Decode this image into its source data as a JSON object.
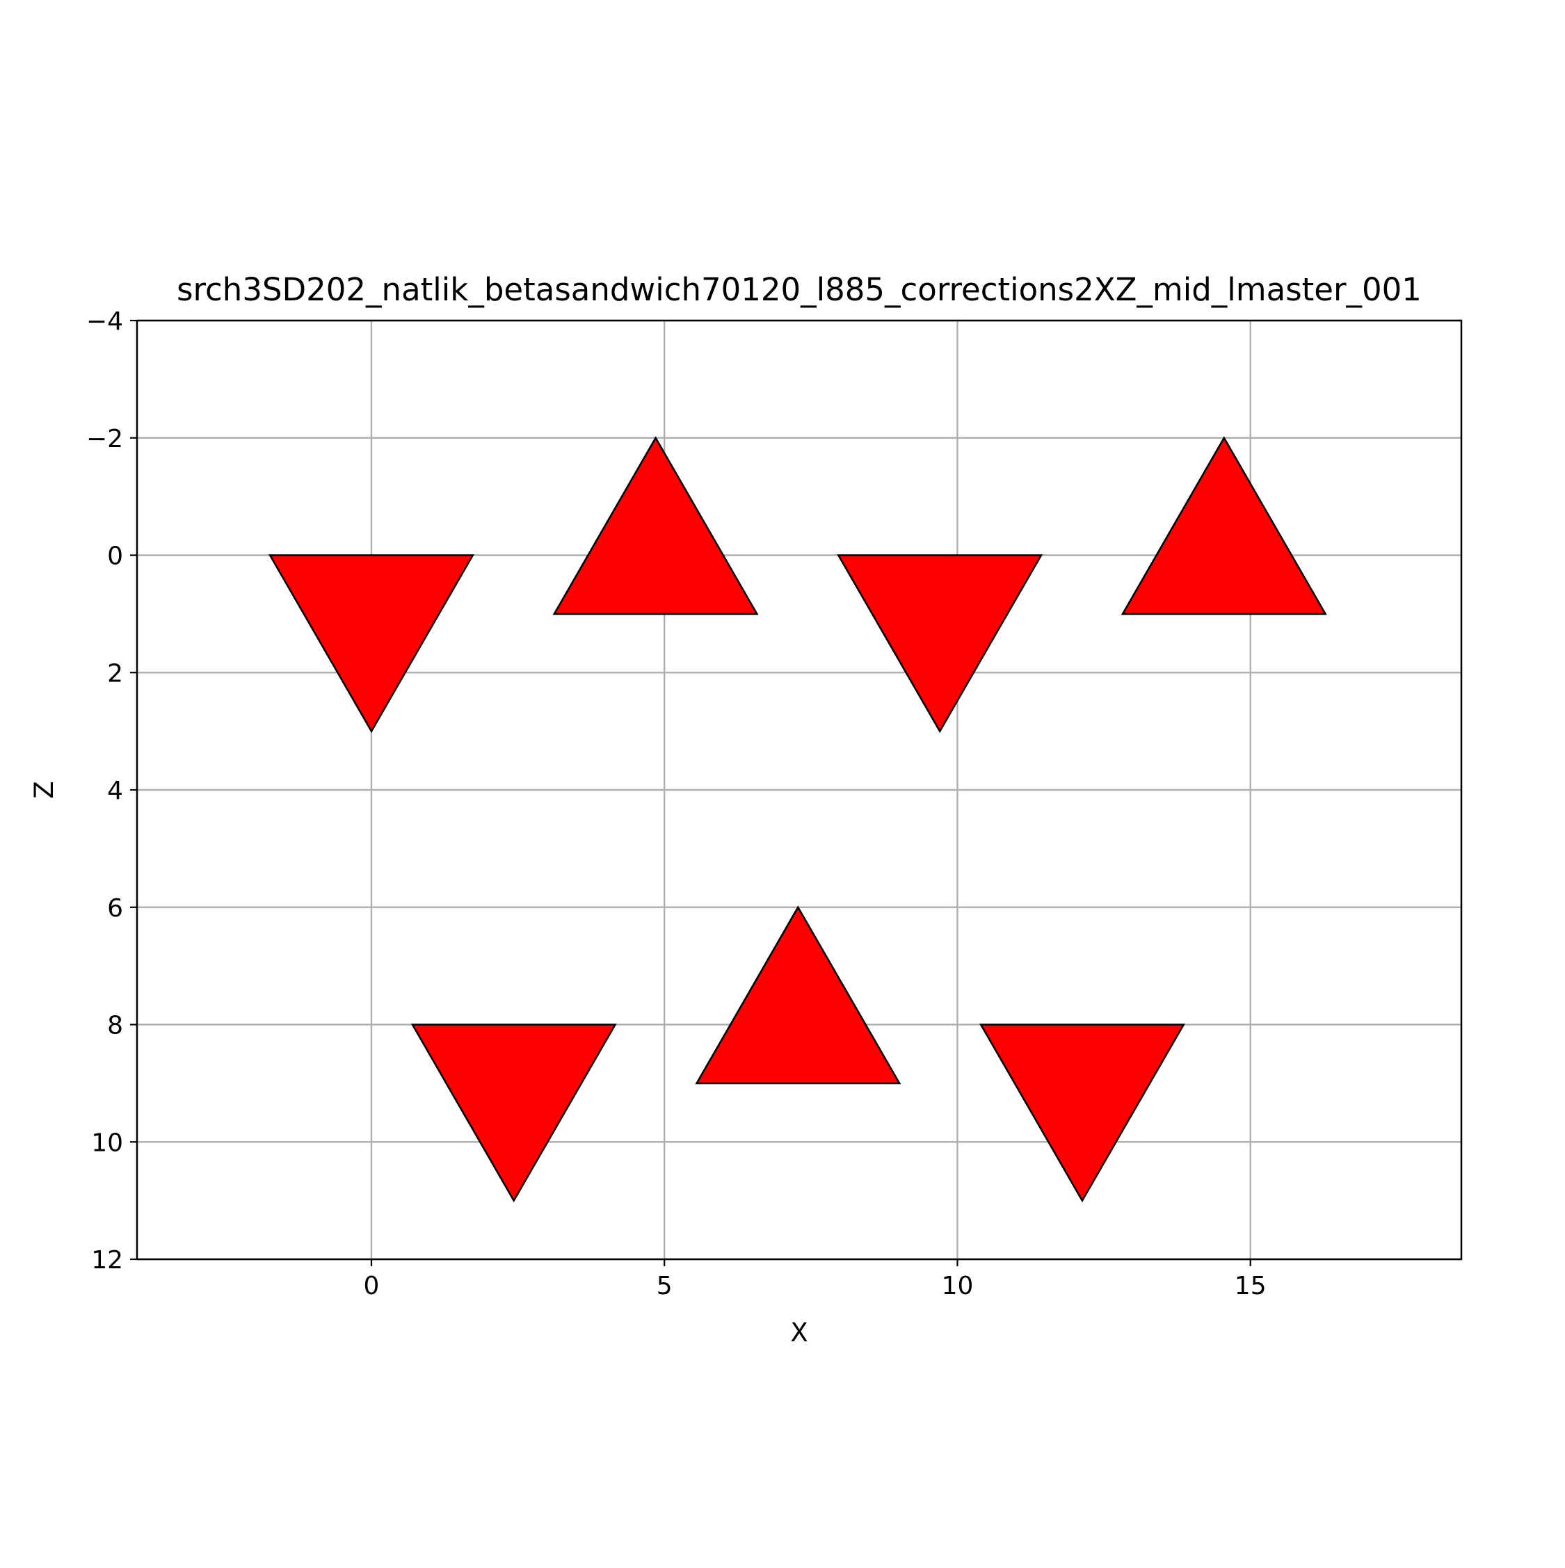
{
  "chart_data": {
    "type": "scatter",
    "title": "srch3SD202_natlik_betasandwich70120_l885_corrections2XZ_mid_lmaster_001",
    "xlabel": "X",
    "ylabel": "Z",
    "xlim": [
      -4.0,
      18.6
    ],
    "ylim": [
      12,
      -4
    ],
    "y_inverted": true,
    "grid": true,
    "xticks": [
      0,
      5,
      10,
      15
    ],
    "xtick_labels": [
      "0",
      "5",
      "10",
      "15"
    ],
    "yticks": [
      -4,
      -2,
      0,
      2,
      4,
      6,
      8,
      10,
      12
    ],
    "ytick_labels": [
      "−4",
      "−2",
      "0",
      "2",
      "4",
      "6",
      "8",
      "10",
      "12"
    ],
    "marker": {
      "shape": "triangle",
      "fill": "#ff0000",
      "edge": "#000000",
      "half_width": 1.73,
      "height": 3.0
    },
    "points": [
      {
        "x": 0.0,
        "z": 1.0,
        "orientation": "down"
      },
      {
        "x": 4.85,
        "z": 0.0,
        "orientation": "up"
      },
      {
        "x": 9.7,
        "z": 1.0,
        "orientation": "down"
      },
      {
        "x": 14.55,
        "z": 0.0,
        "orientation": "up"
      },
      {
        "x": 2.43,
        "z": 9.0,
        "orientation": "down"
      },
      {
        "x": 7.28,
        "z": 8.0,
        "orientation": "up"
      },
      {
        "x": 12.13,
        "z": 9.0,
        "orientation": "down"
      }
    ]
  }
}
